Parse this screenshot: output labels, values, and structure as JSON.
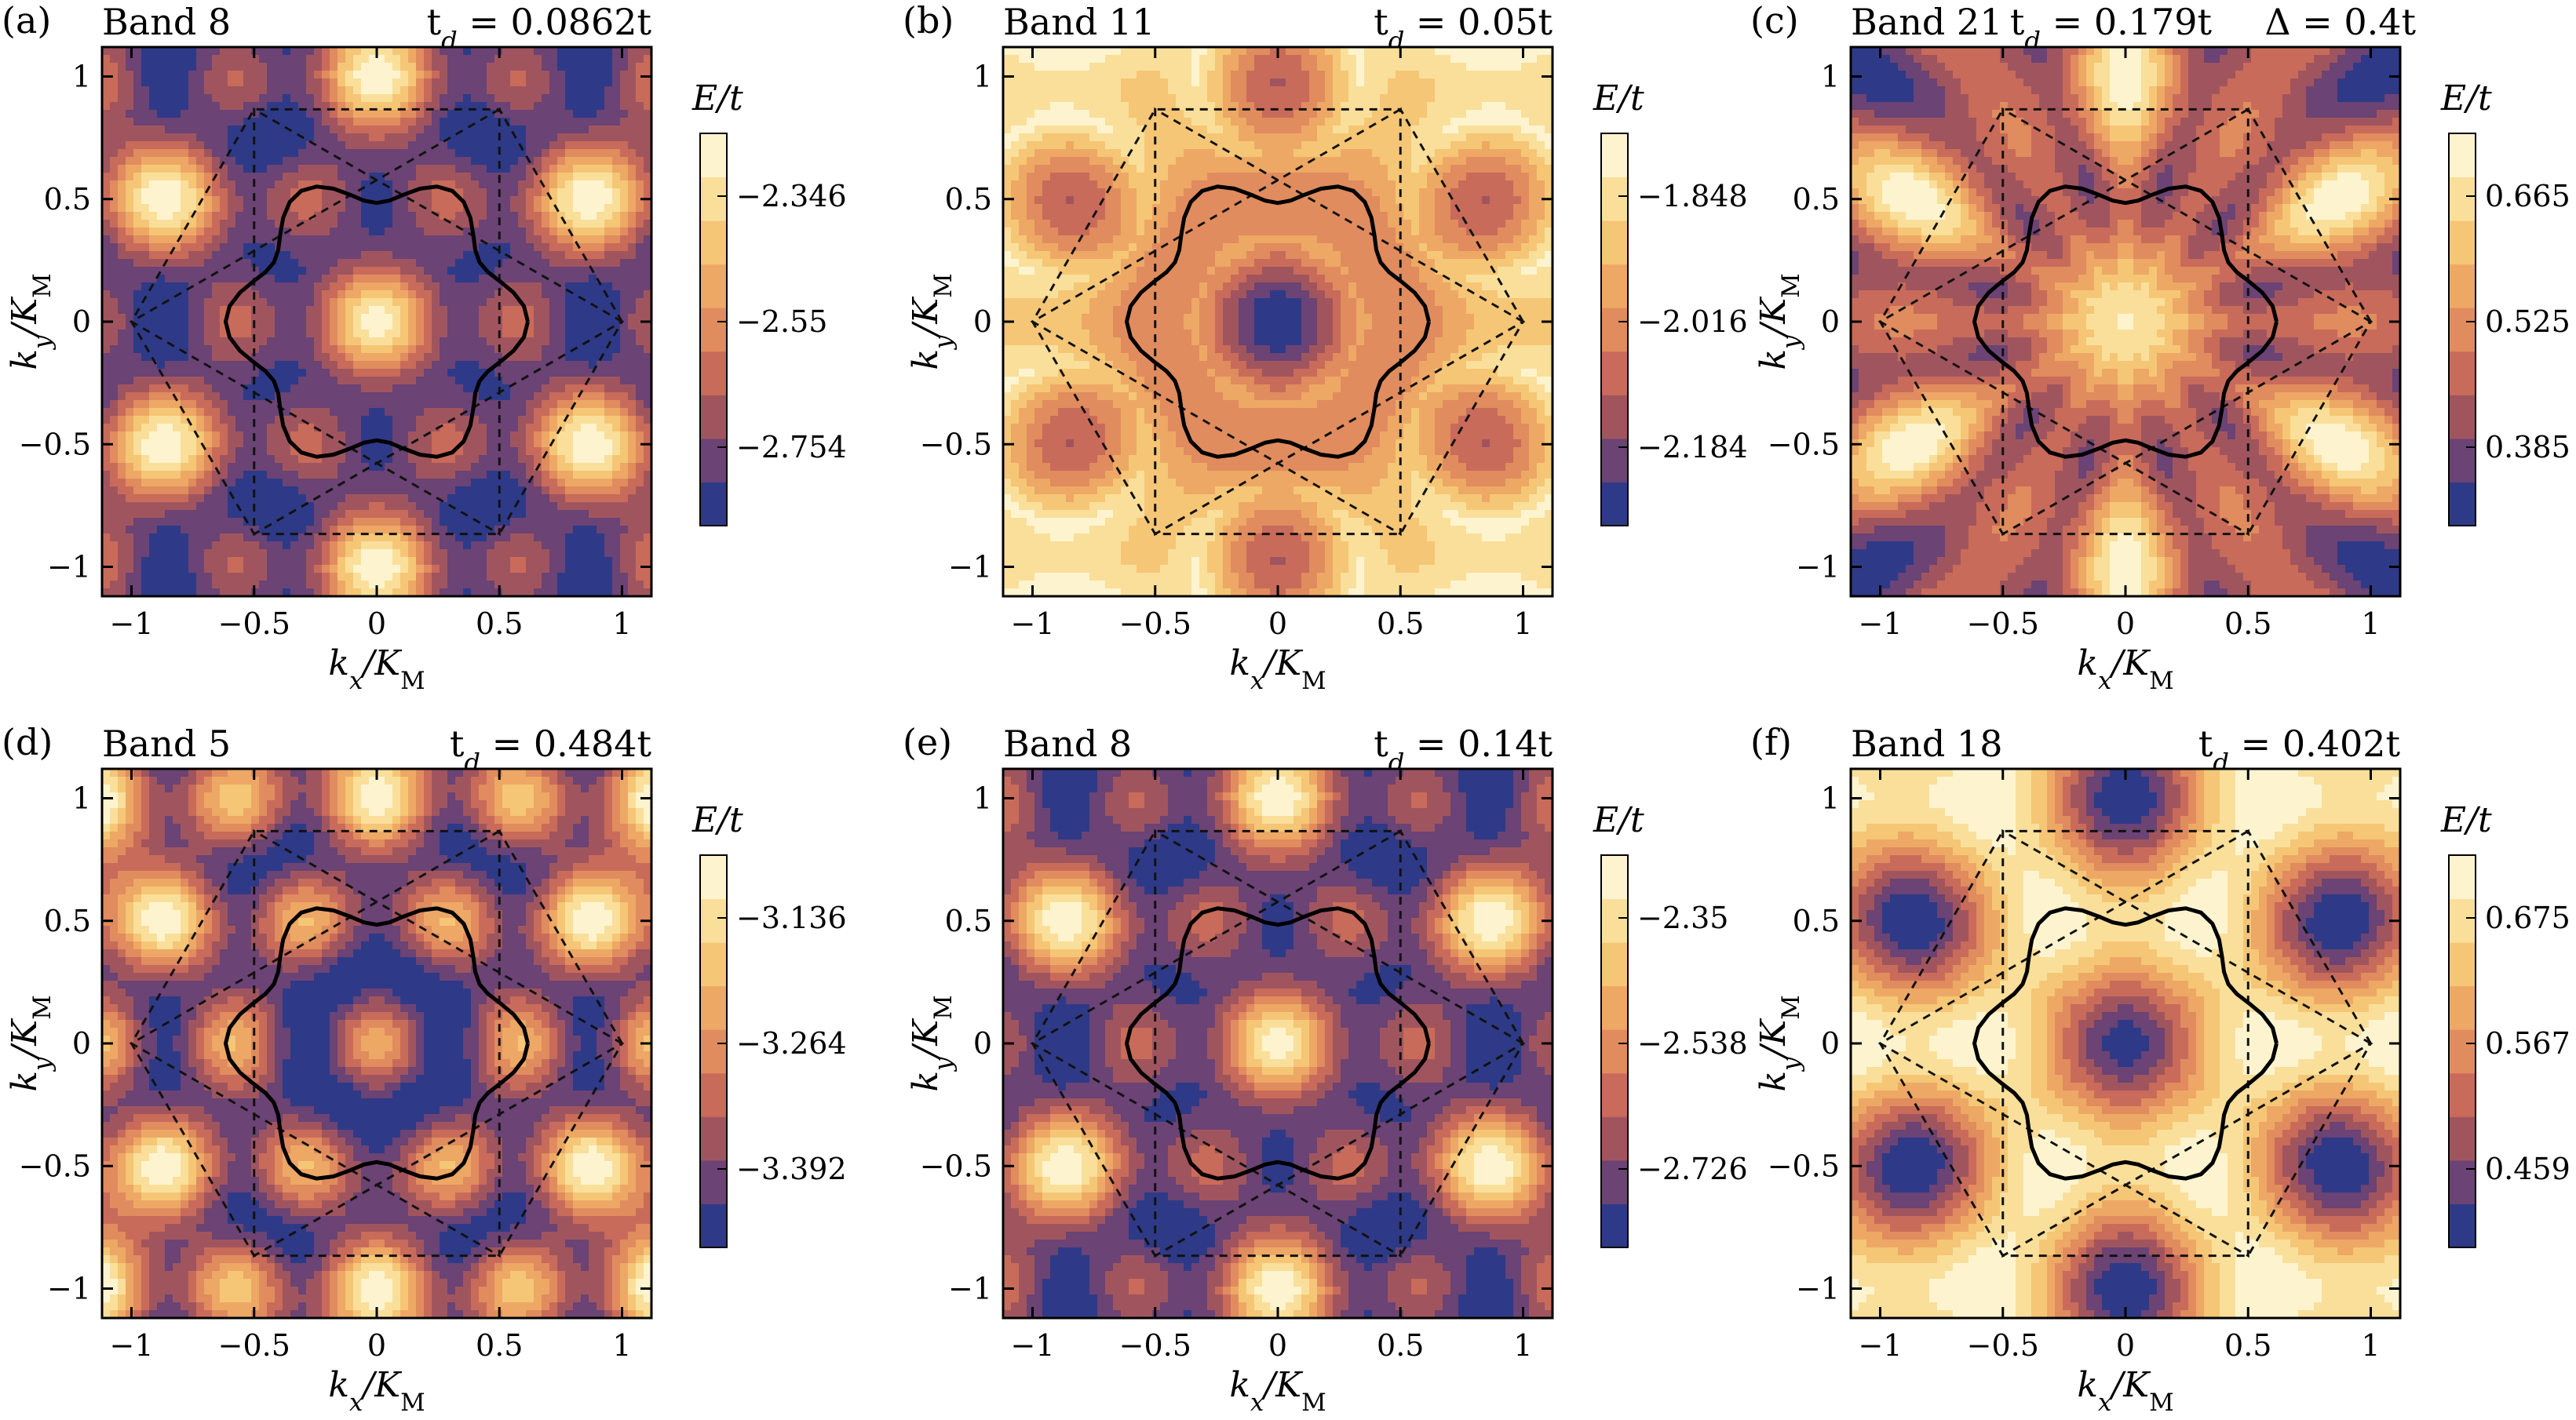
{
  "figure": {
    "panels": [
      {
        "letter": "(a)",
        "band": "Band 8",
        "params": "t_d = 0.0862t",
        "td": 0.0862,
        "delta": null,
        "colorbar": {
          "label": "E/t",
          "ticks": [
            "−2.346",
            "−2.55",
            "−2.754"
          ],
          "min": -2.78,
          "max": -2.3
        },
        "xlabel": "k_x/K_M",
        "ylabel": "k_y/K_M"
      },
      {
        "letter": "(b)",
        "band": "Band 11",
        "params": "t_d = 0.05t",
        "td": 0.05,
        "delta": null,
        "colorbar": {
          "label": "E/t",
          "ticks": [
            "−1.848",
            "−2.016",
            "−2.184"
          ],
          "min": -2.21,
          "max": -1.81
        },
        "xlabel": "k_x/K_M",
        "ylabel": "k_y/K_M"
      },
      {
        "letter": "(c)",
        "band": "Band 21",
        "params": "t_d = 0.179t",
        "td": 0.179,
        "delta": "Δ = 0.4t",
        "colorbar": {
          "label": "E/t",
          "ticks": [
            "0.665",
            "0.525",
            "0.385"
          ],
          "min": 0.36,
          "max": 0.7
        },
        "xlabel": "k_x/K_M",
        "ylabel": "k_y/K_M"
      },
      {
        "letter": "(d)",
        "band": "Band 5",
        "params": "t_d = 0.484t",
        "td": 0.484,
        "delta": null,
        "colorbar": {
          "label": "E/t",
          "ticks": [
            "−3.136",
            "−3.264",
            "−3.392"
          ],
          "min": -3.42,
          "max": -3.1
        },
        "xlabel": "k_x/K_M",
        "ylabel": "k_y/K_M"
      },
      {
        "letter": "(e)",
        "band": "Band 8",
        "params": "t_d = 0.14t",
        "td": 0.14,
        "delta": null,
        "colorbar": {
          "label": "E/t",
          "ticks": [
            "−2.35",
            "−2.538",
            "−2.726"
          ],
          "min": -2.76,
          "max": -2.31
        },
        "xlabel": "k_x/K_M",
        "ylabel": "k_y/K_M"
      },
      {
        "letter": "(f)",
        "band": "Band 18",
        "params": "t_d = 0.402t",
        "td": 0.402,
        "delta": null,
        "colorbar": {
          "label": "E/t",
          "ticks": [
            "0.675",
            "0.567",
            "0.459"
          ],
          "min": 0.43,
          "max": 0.7
        },
        "xlabel": "k_x/K_M",
        "ylabel": "k_y/K_M"
      }
    ],
    "axis_ticks": [
      "−1",
      "−0.5",
      "0",
      "0.5",
      "1"
    ],
    "axis_range": [
      -1.12,
      1.12
    ],
    "colormap": [
      "#2e3a87",
      "#6b4374",
      "#a0555e",
      "#c96b5a",
      "#e08c5e",
      "#eda865",
      "#f5c676",
      "#f9df9a",
      "#fdf4cf"
    ]
  }
}
